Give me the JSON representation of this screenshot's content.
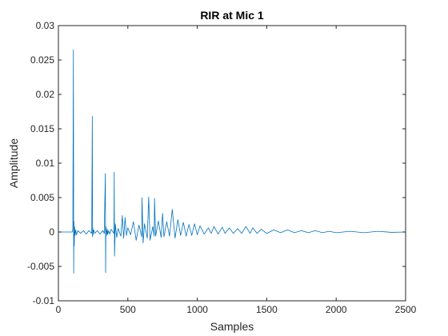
{
  "chart_data": {
    "type": "line",
    "title": "RIR at Mic 1",
    "xlabel": "Samples",
    "ylabel": "Amplitude",
    "xlim": [
      0,
      2500
    ],
    "ylim": [
      -0.01,
      0.03
    ],
    "xticks": [
      0,
      500,
      1000,
      1500,
      2000,
      2500
    ],
    "xtick_labels": [
      "0",
      "500",
      "1000",
      "1500",
      "2000",
      "2500"
    ],
    "yticks": [
      -0.01,
      -0.005,
      0,
      0.005,
      0.01,
      0.015,
      0.02,
      0.025,
      0.03
    ],
    "ytick_labels": [
      "-0.01",
      "-0.005",
      "0",
      "0.005",
      "0.01",
      "0.015",
      "0.02",
      "0.025",
      "0.03"
    ],
    "grid": false,
    "line_color": "#0072BD",
    "axis_color": "#262626",
    "series": [
      {
        "x": [
          0,
          100,
          104,
          108,
          110,
          112,
          114,
          116,
          120,
          124,
          130,
          140,
          160,
          180,
          200,
          220,
          240,
          244,
          246,
          248,
          250,
          254,
          262,
          280,
          300,
          320,
          330,
          338,
          340,
          342,
          350,
          352,
          356,
          362,
          370,
          380,
          400,
          402,
          404,
          410,
          420,
          430,
          450,
          460,
          470,
          480,
          490,
          500,
          520,
          540,
          560,
          580,
          600,
          602,
          610,
          620,
          640,
          650,
          660,
          680,
          690,
          692,
          700,
          720,
          740,
          750,
          760,
          780,
          800,
          820,
          840,
          860,
          880,
          900,
          920,
          940,
          960,
          980,
          1000,
          1020,
          1050,
          1080,
          1100,
          1120,
          1150,
          1180,
          1200,
          1230,
          1260,
          1290,
          1320,
          1350,
          1380,
          1400,
          1430,
          1460,
          1500,
          1550,
          1600,
          1650,
          1700,
          1750,
          1800,
          1850,
          1900,
          1950,
          2000,
          2100,
          2200,
          2300,
          2400,
          2500
        ],
        "y": [
          0,
          0,
          0.0005,
          0.0265,
          -0.006,
          0.0015,
          -0.002,
          0.0008,
          -0.0005,
          0.0003,
          -0.0004,
          0.0002,
          -0.0002,
          0.0002,
          -0.0003,
          0.0002,
          -0.0002,
          0.0168,
          -0.0007,
          0.0006,
          -0.0004,
          0.0003,
          -0.0002,
          0.0002,
          -0.0003,
          0.0002,
          -0.0002,
          0.0085,
          -0.0059,
          0.0008,
          -0.0005,
          0.0004,
          -0.0003,
          0.0002,
          -0.0003,
          0.0004,
          -0.0002,
          0.0087,
          -0.0035,
          0.0012,
          -0.0008,
          0.0005,
          -0.0006,
          0.0024,
          -0.0009,
          0.0021,
          -0.0005,
          0.0006,
          -0.0004,
          0.0015,
          -0.0012,
          0.001,
          -0.0007,
          0.005,
          -0.0016,
          0.0012,
          -0.0009,
          0.0051,
          -0.0012,
          0.0008,
          -0.0006,
          0.0049,
          -0.0006,
          0.0016,
          -0.0008,
          0.0027,
          -0.0007,
          0.0015,
          -0.0006,
          0.0033,
          -0.0009,
          0.0018,
          -0.0005,
          0.0014,
          -0.0006,
          0.0011,
          -0.0005,
          0.0012,
          -0.0004,
          0.0009,
          -0.0003,
          0.0006,
          -0.0002,
          0.0008,
          -0.0003,
          0.0007,
          -0.0002,
          0.0006,
          -0.0002,
          0.0005,
          -0.0002,
          0.0008,
          -0.0002,
          0.0006,
          -0.0002,
          0.0004,
          -0.0002,
          0.0003,
          -0.0001,
          0.0003,
          -0.0001,
          0.0002,
          -0.0001,
          0.0002,
          -0.0001,
          0.0001,
          -0.0001,
          0.0001,
          -0.0001,
          0.0001,
          -5e-05,
          0
        ]
      }
    ]
  }
}
